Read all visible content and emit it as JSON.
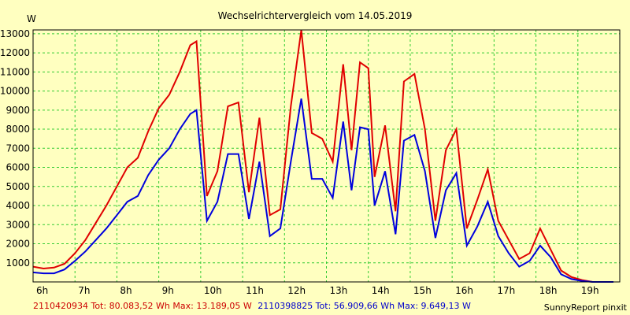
{
  "chart_data": {
    "type": "line",
    "title": "Wechselrichtervergleich vom 14.05.2019",
    "ylabel": "W",
    "xlabel": "",
    "xlim": [
      6,
      20
    ],
    "ylim": [
      0,
      13200
    ],
    "grid": true,
    "x_ticks": [
      {
        "value": 6,
        "label": "6h"
      },
      {
        "value": 7,
        "label": "7h"
      },
      {
        "value": 8,
        "label": "8h"
      },
      {
        "value": 9,
        "label": "9h"
      },
      {
        "value": 10,
        "label": "10h"
      },
      {
        "value": 11,
        "label": "11h"
      },
      {
        "value": 12,
        "label": "12h"
      },
      {
        "value": 13,
        "label": "13h"
      },
      {
        "value": 14,
        "label": "14h"
      },
      {
        "value": 15,
        "label": "15h"
      },
      {
        "value": 16,
        "label": "16h"
      },
      {
        "value": 17,
        "label": "17h"
      },
      {
        "value": 18,
        "label": "18h"
      },
      {
        "value": 19,
        "label": "19h"
      }
    ],
    "y_ticks": [
      1000,
      2000,
      3000,
      4000,
      5000,
      6000,
      7000,
      8000,
      9000,
      10000,
      11000,
      12000,
      13000
    ],
    "series": [
      {
        "name": "2110420934",
        "color": "#e00000",
        "x": [
          6.0,
          6.25,
          6.5,
          6.75,
          7.0,
          7.25,
          7.5,
          7.75,
          8.0,
          8.25,
          8.5,
          8.75,
          9.0,
          9.25,
          9.5,
          9.75,
          9.9,
          10.15,
          10.4,
          10.65,
          10.9,
          11.15,
          11.4,
          11.65,
          11.9,
          12.15,
          12.4,
          12.65,
          12.9,
          13.15,
          13.4,
          13.6,
          13.8,
          14.0,
          14.15,
          14.4,
          14.65,
          14.85,
          15.1,
          15.35,
          15.6,
          15.85,
          16.1,
          16.35,
          16.6,
          16.85,
          17.1,
          17.35,
          17.6,
          17.85,
          18.1,
          18.35,
          18.6,
          18.85,
          19.1,
          19.35,
          19.6,
          19.85
        ],
        "y": [
          800,
          700,
          750,
          950,
          1500,
          2200,
          3100,
          4000,
          5000,
          6000,
          6500,
          7900,
          9100,
          9800,
          11000,
          12400,
          12600,
          4500,
          5800,
          9200,
          9400,
          4700,
          8600,
          3500,
          3800,
          9200,
          13200,
          7800,
          7500,
          6300,
          11400,
          6900,
          11500,
          11200,
          5500,
          8200,
          3700,
          10500,
          10900,
          8000,
          3200,
          6900,
          8000,
          2800,
          4300,
          5900,
          3200,
          2200,
          1200,
          1500,
          2800,
          1700,
          600,
          250,
          100,
          0,
          0,
          0
        ]
      },
      {
        "name": "2110398825",
        "color": "#0000dd",
        "x": [
          6.0,
          6.25,
          6.5,
          6.75,
          7.0,
          7.25,
          7.5,
          7.75,
          8.0,
          8.25,
          8.5,
          8.75,
          9.0,
          9.25,
          9.5,
          9.75,
          9.9,
          10.15,
          10.4,
          10.65,
          10.9,
          11.15,
          11.4,
          11.65,
          11.9,
          12.15,
          12.4,
          12.65,
          12.9,
          13.15,
          13.4,
          13.6,
          13.8,
          14.0,
          14.15,
          14.4,
          14.65,
          14.85,
          15.1,
          15.35,
          15.6,
          15.85,
          16.1,
          16.35,
          16.6,
          16.85,
          17.1,
          17.35,
          17.6,
          17.85,
          18.1,
          18.35,
          18.6,
          18.85,
          19.1,
          19.35,
          19.6,
          19.85
        ],
        "y": [
          500,
          450,
          450,
          650,
          1100,
          1600,
          2200,
          2800,
          3500,
          4200,
          4500,
          5600,
          6400,
          7000,
          8000,
          8800,
          9000,
          3200,
          4200,
          6700,
          6700,
          3300,
          6300,
          2400,
          2800,
          6300,
          9600,
          5400,
          5400,
          4400,
          8400,
          4800,
          8100,
          8000,
          4000,
          5800,
          2500,
          7400,
          7700,
          5800,
          2300,
          4800,
          5700,
          1900,
          2900,
          4200,
          2400,
          1500,
          800,
          1100,
          1900,
          1300,
          400,
          150,
          50,
          0,
          0,
          0
        ]
      }
    ]
  },
  "legend": {
    "series1": "2110420934 Tot: 80.083,52 Wh Max: 13.189,05 W",
    "series2": "2110398825 Tot: 56.909,66 Wh Max: 9.649,13 W"
  },
  "footer": "SunnyReport pinxit",
  "colors": {
    "background": "#ffffc0",
    "plot": "#ffffc0",
    "grid": "#33cc33",
    "axis": "#000000"
  }
}
